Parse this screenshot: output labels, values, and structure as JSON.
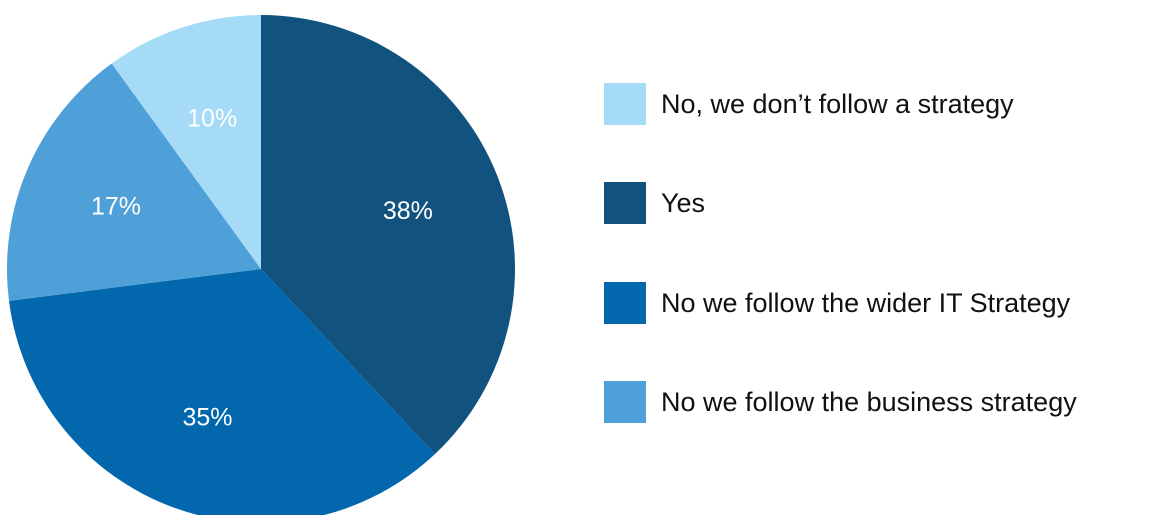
{
  "chart_data": {
    "type": "pie",
    "slices": [
      {
        "label": "Yes",
        "value": 38,
        "display": "38%",
        "color": "#12527f"
      },
      {
        "label": "No we follow the wider IT Strategy",
        "value": 35,
        "display": "35%",
        "color": "#0267ad"
      },
      {
        "label": "No we follow the business strategy",
        "value": 17,
        "display": "17%",
        "color": "#4fa0d8"
      },
      {
        "label": "No, we don’t follow a strategy",
        "value": 10,
        "display": "10%",
        "color": "#a5dbf7"
      }
    ],
    "legend": {
      "placement": "right",
      "entries": [
        {
          "label": "No, we don’t follow a strategy",
          "color": "#a5dbf7"
        },
        {
          "label": "Yes",
          "color": "#12527f"
        },
        {
          "label": "No we follow the wider IT Strategy",
          "color": "#0267ad"
        },
        {
          "label": "No we follow the business strategy",
          "color": "#4fa0d8"
        }
      ]
    }
  }
}
